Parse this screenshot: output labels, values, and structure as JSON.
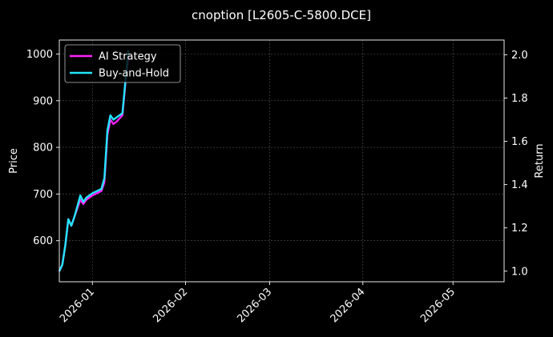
{
  "chart_data": {
    "type": "line",
    "title": "cnoption [L2605-C-5800.DCE]",
    "ylabel": "Price",
    "y2label": "Return",
    "ylim": [
      512,
      1030
    ],
    "y2lim": [
      0.951,
      2.068
    ],
    "xlim": [
      "2025-12-21",
      "2026-05-18"
    ],
    "yticks": [
      600,
      700,
      800,
      900,
      1000
    ],
    "y2ticks": [
      "1.0",
      "1.2",
      "1.4",
      "1.6",
      "1.8",
      "2.0"
    ],
    "xticks": [
      "2026-01",
      "2026-02",
      "2026-03",
      "2026-04",
      "2026-05"
    ],
    "grid": true,
    "legend_position": "top-left",
    "series": [
      {
        "name": "AI Strategy",
        "color": "#ff22ff",
        "points": [
          [
            "2025-12-21",
            1.0
          ],
          [
            "2025-12-22",
            1.03
          ],
          [
            "2025-12-23",
            1.12
          ],
          [
            "2025-12-24",
            1.24
          ],
          [
            "2025-12-25",
            1.21
          ],
          [
            "2025-12-26",
            1.25
          ],
          [
            "2025-12-28",
            1.33
          ],
          [
            "2025-12-29",
            1.31
          ],
          [
            "2025-12-30",
            1.33
          ],
          [
            "2026-01-01",
            1.35
          ],
          [
            "2026-01-04",
            1.37
          ],
          [
            "2026-01-05",
            1.41
          ],
          [
            "2026-01-06",
            1.63
          ],
          [
            "2026-01-07",
            1.7
          ],
          [
            "2026-01-08",
            1.68
          ],
          [
            "2026-01-09",
            1.69
          ],
          [
            "2026-01-11",
            1.72
          ],
          [
            "2026-01-12",
            1.87
          ],
          [
            "2026-01-13",
            1.99
          ]
        ]
      },
      {
        "name": "Buy-and-Hold",
        "color": "#22e5ff",
        "points": [
          [
            "2025-12-21",
            1.0
          ],
          [
            "2025-12-22",
            1.03
          ],
          [
            "2025-12-23",
            1.12
          ],
          [
            "2025-12-24",
            1.24
          ],
          [
            "2025-12-25",
            1.21
          ],
          [
            "2025-12-26",
            1.25
          ],
          [
            "2025-12-28",
            1.35
          ],
          [
            "2025-12-29",
            1.32
          ],
          [
            "2025-12-30",
            1.34
          ],
          [
            "2026-01-01",
            1.36
          ],
          [
            "2026-01-04",
            1.38
          ],
          [
            "2026-01-05",
            1.43
          ],
          [
            "2026-01-06",
            1.65
          ],
          [
            "2026-01-07",
            1.72
          ],
          [
            "2026-01-08",
            1.7
          ],
          [
            "2026-01-09",
            1.71
          ],
          [
            "2026-01-11",
            1.73
          ],
          [
            "2026-01-12",
            1.88
          ],
          [
            "2026-01-13",
            2.02
          ]
        ]
      }
    ]
  }
}
